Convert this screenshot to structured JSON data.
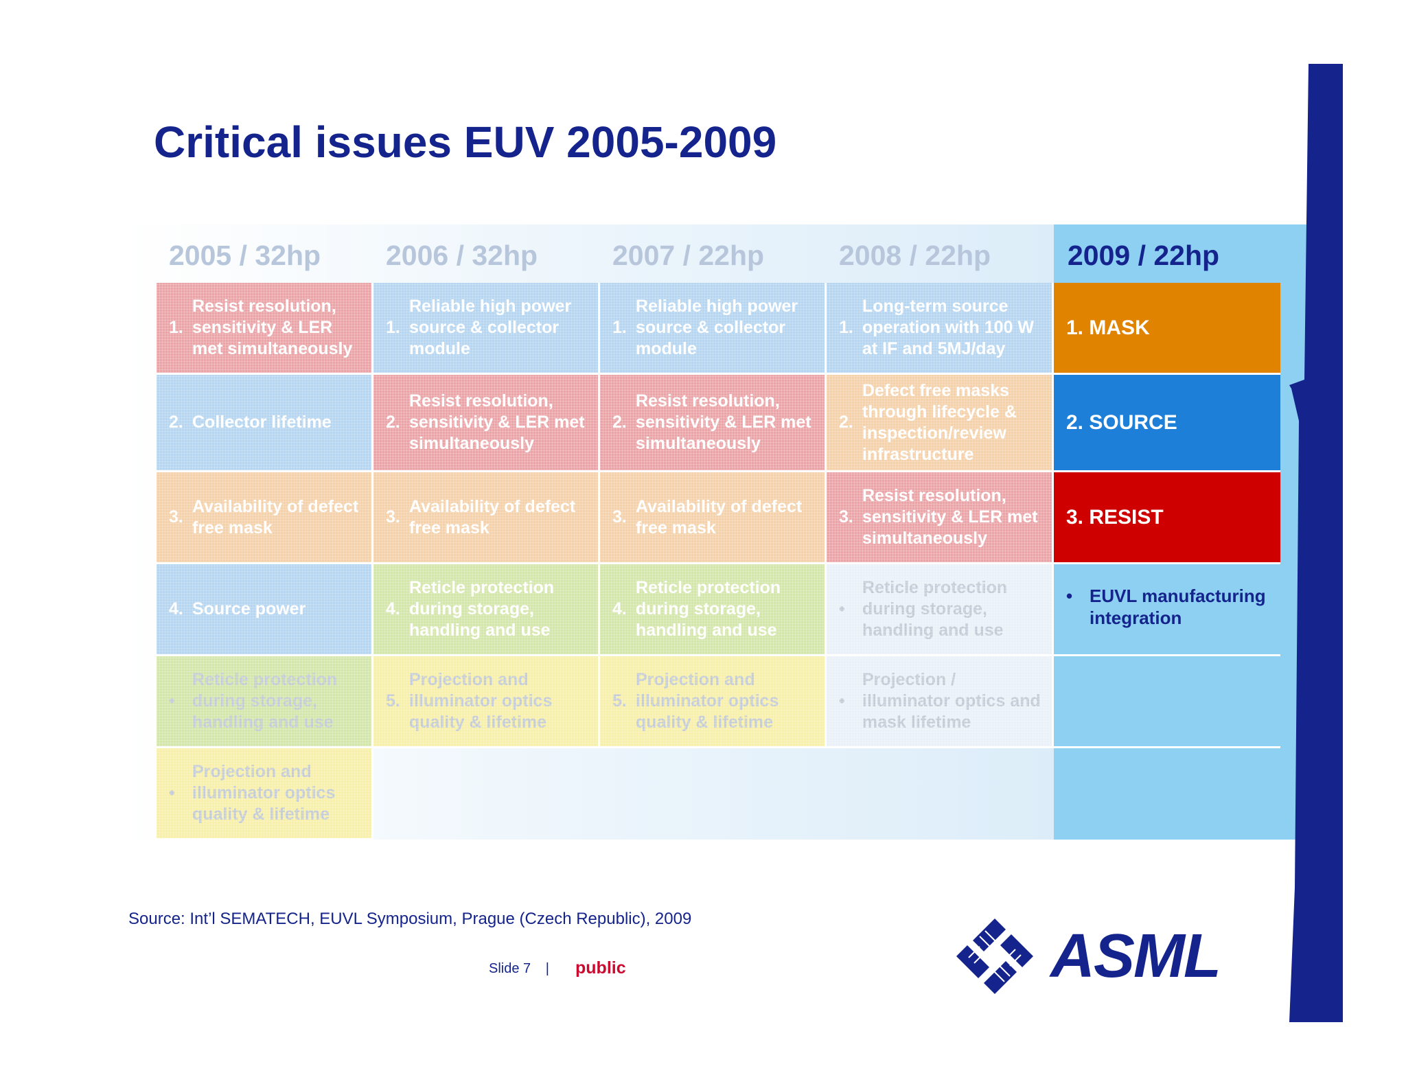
{
  "slide": {
    "title": "Critical issues EUV 2005-2009",
    "source": "Source: Int’l SEMATECH, EUVL Symposium, Prague (Czech Republic), 2009",
    "slide_label": "Slide 7",
    "separator": "|",
    "classification": "public",
    "logo_text": "ASML"
  },
  "colors": {
    "title": "#14248c",
    "mask": "#e08300",
    "source": "#1e7fd9",
    "resist": "#cf0000",
    "panel": "#8dd0f2",
    "public": "#cc0a2f"
  },
  "columns": [
    {
      "year": "2005 / 32hp",
      "items": [
        {
          "num": "1.",
          "text": "Resist resolution, sensitivity & LER met simultaneously"
        },
        {
          "num": "2.",
          "text": "Collector lifetime"
        },
        {
          "num": "3.",
          "text": "Availability of defect free mask"
        },
        {
          "num": "4.",
          "text": "Source power"
        },
        {
          "num": "•",
          "text": "Reticle protection during storage, handling and use"
        },
        {
          "num": "•",
          "text": "Projection and illuminator optics quality & lifetime"
        }
      ]
    },
    {
      "year": "2006 / 32hp",
      "items": [
        {
          "num": "1.",
          "text": "Reliable high power source & collector module"
        },
        {
          "num": "2.",
          "text": "Resist resolution, sensitivity & LER met simultaneously"
        },
        {
          "num": "3.",
          "text": "Availability of defect free mask"
        },
        {
          "num": "4.",
          "text": "Reticle protection during storage, handling and use"
        },
        {
          "num": "5.",
          "text": "Projection and illuminator optics quality & lifetime"
        }
      ]
    },
    {
      "year": "2007 / 22hp",
      "items": [
        {
          "num": "1.",
          "text": "Reliable high power source & collector module"
        },
        {
          "num": "2.",
          "text": "Resist resolution, sensitivity & LER met simultaneously"
        },
        {
          "num": "3.",
          "text": "Availability of defect free mask"
        },
        {
          "num": "4.",
          "text": "Reticle protection during storage, handling and use"
        },
        {
          "num": "5.",
          "text": "Projection and illuminator optics quality & lifetime"
        }
      ]
    },
    {
      "year": "2008 / 22hp",
      "items": [
        {
          "num": "1.",
          "text": "Long-term source operation with 100 W at IF and 5MJ/day"
        },
        {
          "num": "2.",
          "text": "Defect free masks through lifecycle & inspection/review infrastructure"
        },
        {
          "num": "3.",
          "text": "Resist resolution, sensitivity & LER met simultaneously"
        },
        {
          "num": "•",
          "text": "Reticle protection during storage, handling and use"
        },
        {
          "num": "•",
          "text": "Projection / illuminator optics and mask lifetime"
        }
      ]
    }
  ],
  "current": {
    "year": "2009 / 22hp",
    "items": [
      "1. MASK",
      "2. SOURCE",
      "3. RESIST"
    ],
    "bullet": "•",
    "bullet_text": "EUVL manufacturing integration"
  }
}
